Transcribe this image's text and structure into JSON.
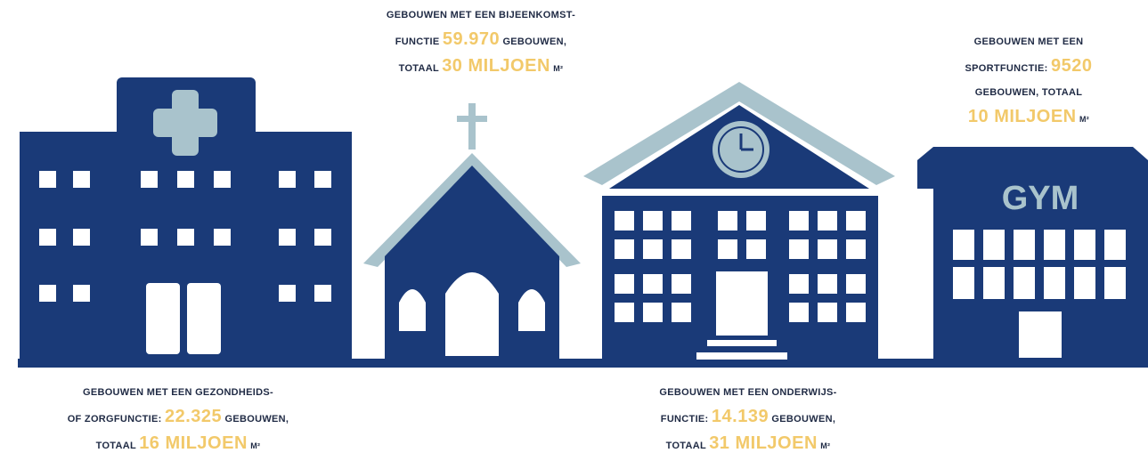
{
  "colors": {
    "navy": "#1a3a78",
    "light_blue": "#a9c3cc",
    "highlight": "#f2c96a",
    "window": "#ffffff",
    "background": "#ffffff"
  },
  "buildings": {
    "hospital": {
      "icon": "hospital-cross-icon"
    },
    "church": {
      "icon": "church-cross-icon"
    },
    "school": {
      "icon": "clock-icon"
    },
    "gym": {
      "sign": "GYM"
    }
  },
  "captions": {
    "gathering": {
      "line1": "GEBOUWEN MET EEN BIJEENKOMST-",
      "line2_pre": "FUNCTIE",
      "line2_num": "59.970",
      "line2_post": "GEBOUWEN,",
      "line3_pre": "TOTAAL",
      "line3_num": "30 MILJOEN",
      "line3_unit": "M²"
    },
    "sport": {
      "line1": "GEBOUWEN MET EEN",
      "line2_pre": "SPORTFUNCTIE:",
      "line2_num": "9520",
      "line3": "GEBOUWEN, TOTAAL",
      "line4_num": "10 MILJOEN",
      "line4_unit": "M²"
    },
    "health": {
      "line1": "GEBOUWEN MET EEN GEZONDHEIDS-",
      "line2_pre": "OF ZORGFUNCTIE:",
      "line2_num": "22.325",
      "line2_post": "GEBOUWEN,",
      "line3_pre": "TOTAAL",
      "line3_num": "16 MILJOEN",
      "line3_unit": "M²"
    },
    "education": {
      "line1": "GEBOUWEN MET EEN ONDERWIJS-",
      "line2_pre": "FUNCTIE:",
      "line2_num": "14.139",
      "line2_post": "GEBOUWEN,",
      "line3_pre": "TOTAAL",
      "line3_num": "31 MILJOEN",
      "line3_unit": "M²"
    }
  }
}
